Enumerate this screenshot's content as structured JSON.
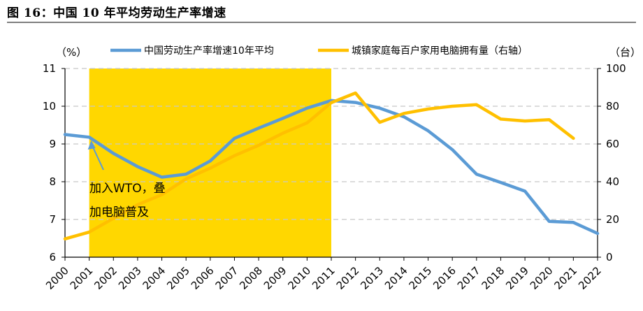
{
  "figure_title": "图 16：中国 10 年平均劳动生产率增速",
  "chart_data": {
    "type": "line",
    "x": [
      2000,
      2001,
      2002,
      2003,
      2004,
      2005,
      2006,
      2007,
      2008,
      2009,
      2010,
      2011,
      2012,
      2013,
      2014,
      2015,
      2016,
      2017,
      2018,
      2019,
      2020,
      2021,
      2022
    ],
    "x_tick_labels": [
      "2000",
      "2001",
      "2002",
      "2003",
      "2004",
      "2005",
      "2006",
      "2007",
      "2008",
      "2009",
      "2010",
      "2011",
      "2012",
      "2013",
      "2014",
      "2015",
      "2016",
      "2017",
      "2018",
      "2019",
      "2020",
      "2021",
      "2022"
    ],
    "y_left": {
      "unit": "（%）",
      "ylim": [
        6,
        11
      ],
      "ticks": [
        "6",
        "7",
        "8",
        "9",
        "10",
        "11"
      ]
    },
    "y_right": {
      "unit": "（台）",
      "ylim": [
        0,
        100
      ],
      "ticks": [
        "0",
        "20",
        "40",
        "60",
        "80",
        "100"
      ]
    },
    "series": [
      {
        "name": "中国劳动生产率增速10年平均",
        "axis": "left",
        "color": "#5B9BD5",
        "values": [
          9.25,
          9.18,
          8.75,
          8.4,
          8.12,
          8.2,
          8.55,
          9.15,
          9.42,
          9.68,
          9.95,
          10.15,
          10.1,
          9.95,
          9.72,
          9.35,
          8.85,
          8.2,
          7.98,
          7.75,
          6.95,
          6.92,
          6.63
        ]
      },
      {
        "name": "城镇家庭每百户家用电脑拥有量（右轴）",
        "axis": "right",
        "color": "#FFC000",
        "values": [
          9.7,
          13.3,
          20.6,
          27.8,
          33.1,
          41.5,
          47.2,
          53.8,
          59.3,
          65.7,
          71.2,
          81.9,
          87.0,
          71.5,
          76.2,
          78.5,
          80.0,
          80.8,
          73.2,
          72.2,
          72.9,
          63.0,
          null
        ]
      }
    ],
    "shaded_region": {
      "x_start": 2001,
      "x_end": 2011,
      "color": "#FFD700"
    },
    "annotation": {
      "line1": "加入WTO，叠",
      "line2": "加电脑普及",
      "points_to_x": 2001
    },
    "grid": "horizontal dashed",
    "legend": "top"
  }
}
